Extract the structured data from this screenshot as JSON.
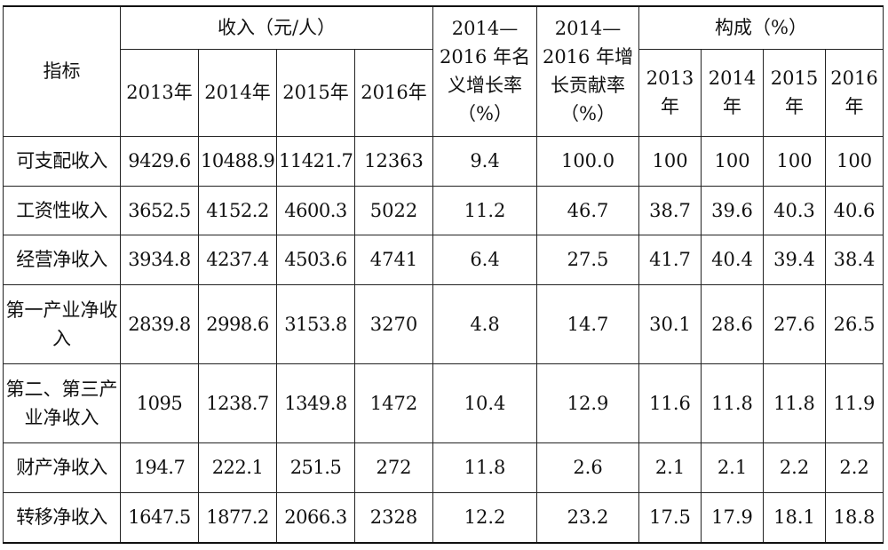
{
  "header": {
    "indicator": "指标",
    "income_group": "收入（元/人）",
    "growth_rate": "2014—2016 年名义增长率（%）",
    "contribution": "2014—2016 年增长贡献率（%）",
    "composition_group": "构成（%）",
    "years": [
      "2013年",
      "2014年",
      "2015年",
      "2016年"
    ]
  },
  "rows": [
    {
      "label": "可支配收入",
      "cells": [
        "9429.6",
        "10488.9",
        "11421.7",
        "12363",
        "9.4",
        "100.0",
        "100",
        "100",
        "100",
        "100"
      ]
    },
    {
      "label": "工资性收入",
      "cells": [
        "3652.5",
        "4152.2",
        "4600.3",
        "5022",
        "11.2",
        "46.7",
        "38.7",
        "39.6",
        "40.3",
        "40.6"
      ]
    },
    {
      "label": "经营净收入",
      "cells": [
        "3934.8",
        "4237.4",
        "4503.6",
        "4741",
        "6.4",
        "27.5",
        "41.7",
        "40.4",
        "39.4",
        "38.4"
      ]
    },
    {
      "label": "第一产业净收入",
      "cells": [
        "2839.8",
        "2998.6",
        "3153.8",
        "3270",
        "4.8",
        "14.7",
        "30.1",
        "28.6",
        "27.6",
        "26.5"
      ]
    },
    {
      "label": "第二、第三产业净收入",
      "cells": [
        "1095",
        "1238.7",
        "1349.8",
        "1472",
        "10.4",
        "12.9",
        "11.6",
        "11.8",
        "11.8",
        "11.9"
      ]
    },
    {
      "label": "财产净收入",
      "cells": [
        "194.7",
        "222.1",
        "251.5",
        "272",
        "11.8",
        "2.6",
        "2.1",
        "2.1",
        "2.2",
        "2.2"
      ]
    },
    {
      "label": "转移净收入",
      "cells": [
        "1647.5",
        "1877.2",
        "2066.3",
        "2328",
        "12.2",
        "23.2",
        "17.5",
        "17.9",
        "18.1",
        "18.8"
      ]
    }
  ]
}
